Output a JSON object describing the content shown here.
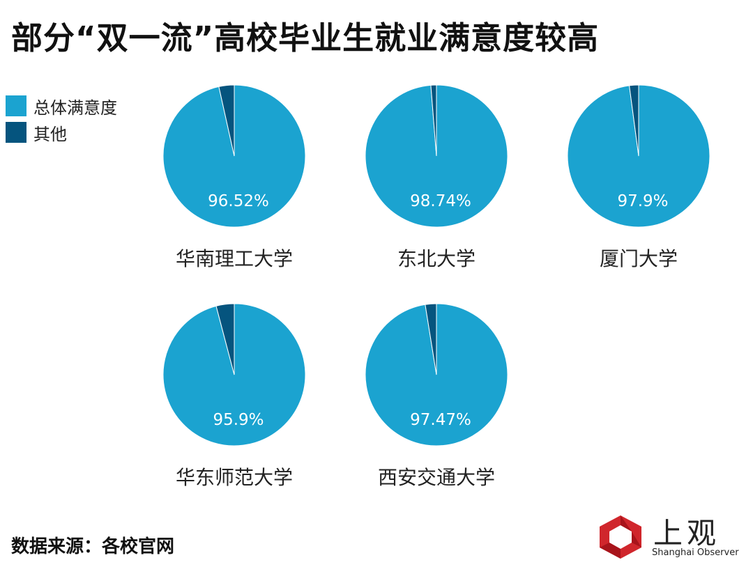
{
  "title": "部分“双一流”高校毕业生就业满意度较高",
  "legend": [
    {
      "label": "总体满意度",
      "color": "#1ba3d0"
    },
    {
      "label": "其他",
      "color": "#05547e"
    }
  ],
  "chart_data": {
    "type": "pie",
    "title": "部分“双一流”高校毕业生就业满意度较高",
    "series_names": [
      "总体满意度",
      "其他"
    ],
    "colors": {
      "satisfaction": "#1ba3d0",
      "other": "#05547e"
    },
    "pies": [
      {
        "university": "华南理工大学",
        "satisfaction": 96.52,
        "other": 3.48,
        "label": "96.52%"
      },
      {
        "university": "东北大学",
        "satisfaction": 98.74,
        "other": 1.26,
        "label": "98.74%"
      },
      {
        "university": "厦门大学",
        "satisfaction": 97.9,
        "other": 2.1,
        "label": "97.9%"
      },
      {
        "university": "华东师范大学",
        "satisfaction": 95.9,
        "other": 4.1,
        "label": "95.9%"
      },
      {
        "university": "西安交通大学",
        "satisfaction": 97.47,
        "other": 2.53,
        "label": "97.47%"
      }
    ]
  },
  "source": "数据来源：各校官网",
  "logo": {
    "cn": "上观",
    "en": "Shanghai Observer",
    "color": "#d0262c"
  }
}
